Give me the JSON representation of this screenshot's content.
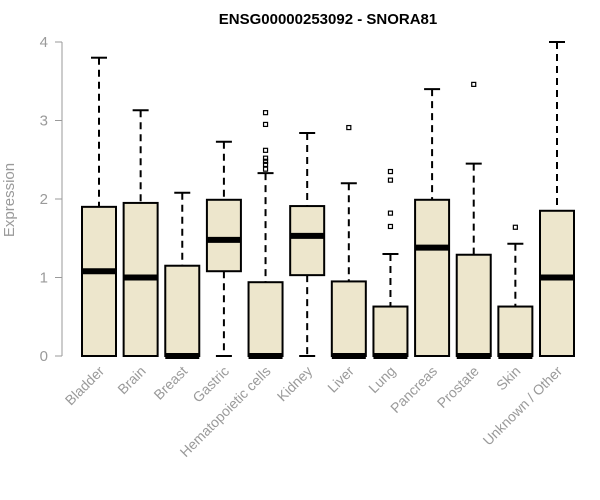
{
  "chart_data": {
    "type": "boxplot",
    "title": "ENSG00000253092 - SNORA81",
    "xlabel": "",
    "ylabel": "Expression",
    "ylim": [
      0,
      4
    ],
    "yticks": [
      "0",
      "1",
      "2",
      "3",
      "4"
    ],
    "box_color": "#ede6cc",
    "categories": [
      "Bladder",
      "Brain",
      "Breast",
      "Gastric",
      "Hematopoietic cells",
      "Kidney",
      "Liver",
      "Lung",
      "Pancreas",
      "Prostate",
      "Skin",
      "Unknown / Other"
    ],
    "series": [
      {
        "name": "Bladder",
        "min": 0,
        "q1": 0,
        "median": 1.08,
        "q3": 1.9,
        "max": 3.8,
        "outliers": []
      },
      {
        "name": "Brain",
        "min": 0,
        "q1": 0,
        "median": 1.0,
        "q3": 1.95,
        "max": 3.13,
        "outliers": []
      },
      {
        "name": "Breast",
        "min": 0,
        "q1": 0,
        "median": 0,
        "q3": 1.15,
        "max": 2.08,
        "outliers": []
      },
      {
        "name": "Gastric",
        "min": 0,
        "q1": 1.08,
        "median": 1.48,
        "q3": 1.99,
        "max": 2.73,
        "outliers": []
      },
      {
        "name": "Hematopoietic cells",
        "min": 0,
        "q1": 0,
        "median": 0,
        "q3": 0.94,
        "max": 2.33,
        "outliers": [
          2.38,
          2.44,
          2.48,
          2.52,
          2.62,
          2.95,
          3.1
        ]
      },
      {
        "name": "Kidney",
        "min": 0,
        "q1": 1.03,
        "median": 1.53,
        "q3": 1.91,
        "max": 2.84,
        "outliers": []
      },
      {
        "name": "Liver",
        "min": 0,
        "q1": 0,
        "median": 0,
        "q3": 0.95,
        "max": 2.2,
        "outliers": [
          2.91
        ]
      },
      {
        "name": "Lung",
        "min": 0,
        "q1": 0,
        "median": 0,
        "q3": 0.63,
        "max": 1.3,
        "outliers": [
          1.65,
          1.82,
          2.24,
          2.35
        ]
      },
      {
        "name": "Pancreas",
        "min": 0,
        "q1": 0,
        "median": 1.38,
        "q3": 1.99,
        "max": 3.4,
        "outliers": []
      },
      {
        "name": "Prostate",
        "min": 0,
        "q1": 0,
        "median": 0,
        "q3": 1.29,
        "max": 2.45,
        "outliers": [
          3.46
        ]
      },
      {
        "name": "Skin",
        "min": 0,
        "q1": 0,
        "median": 0,
        "q3": 0.63,
        "max": 1.43,
        "outliers": [
          1.64
        ]
      },
      {
        "name": "Unknown / Other",
        "min": 0,
        "q1": 0,
        "median": 1.0,
        "q3": 1.85,
        "max": 4.0,
        "outliers": []
      }
    ]
  }
}
